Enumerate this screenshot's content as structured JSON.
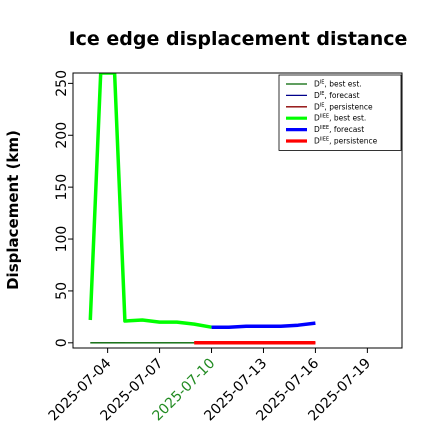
{
  "chart_data": {
    "type": "line",
    "title": "Ice edge displacement distance",
    "xlabel": "",
    "ylabel": "Displacement (km)",
    "xlim": [
      "2025-07-02",
      "2025-07-21"
    ],
    "ylim": [
      -5,
      260
    ],
    "yticks": [
      0,
      50,
      100,
      150,
      200,
      250
    ],
    "xticks": [
      {
        "date": "2025-07-04",
        "label": "2025-07-04",
        "color": "#000000"
      },
      {
        "date": "2025-07-07",
        "label": "2025-07-07",
        "color": "#000000"
      },
      {
        "date": "2025-07-10",
        "label": "2025-07-10",
        "color": "#228b22"
      },
      {
        "date": "2025-07-13",
        "label": "2025-07-13",
        "color": "#000000"
      },
      {
        "date": "2025-07-16",
        "label": "2025-07-16",
        "color": "#000000"
      },
      {
        "date": "2025-07-19",
        "label": "2025-07-19",
        "color": "#000000"
      }
    ],
    "legend_position": "top-right",
    "series": [
      {
        "name": "D^IE, best est.",
        "sup": "IE",
        "suffix": "best est.",
        "color": "#006400",
        "width": 1.3,
        "x": [
          "2025-07-03",
          "2025-07-10"
        ],
        "y": [
          0,
          0
        ]
      },
      {
        "name": "D^IE, forecast",
        "sup": "IE",
        "suffix": "forecast",
        "color": "#00008b",
        "width": 1.3,
        "x": [
          "2025-07-10",
          "2025-07-16"
        ],
        "y": [
          0,
          0
        ]
      },
      {
        "name": "D^IE, persistence",
        "sup": "IE",
        "suffix": "persistence",
        "color": "#8b0000",
        "width": 1.3,
        "x": [
          "2025-07-10",
          "2025-07-16"
        ],
        "y": [
          0,
          0
        ]
      },
      {
        "name": "D^IIEE, best est.",
        "sup": "IIEE",
        "suffix": "best est.",
        "color": "#00ff00",
        "width": 3.5,
        "x": [
          "2025-07-03",
          "2025-07-03.6",
          "2025-07-04.4",
          "2025-07-05",
          "2025-07-06",
          "2025-07-07",
          "2025-07-08",
          "2025-07-09",
          "2025-07-10"
        ],
        "y": [
          22,
          260,
          260,
          21,
          22,
          20,
          20,
          18,
          15
        ]
      },
      {
        "name": "D^IIEE, forecast",
        "sup": "IIEE",
        "suffix": "forecast",
        "color": "#0000ff",
        "width": 3.5,
        "x": [
          "2025-07-10",
          "2025-07-11",
          "2025-07-12",
          "2025-07-13",
          "2025-07-14",
          "2025-07-15",
          "2025-07-16"
        ],
        "y": [
          15,
          15,
          16,
          16,
          16,
          17,
          19
        ]
      },
      {
        "name": "D^IIEE, persistence",
        "sup": "IIEE",
        "suffix": "persistence",
        "color": "#ff0000",
        "width": 3.5,
        "x": [
          "2025-07-09",
          "2025-07-16"
        ],
        "y": [
          0,
          0
        ]
      }
    ],
    "extra_lines": [
      {
        "color": "#cccccc",
        "width": 1.3,
        "x": [
          "2025-07-03",
          "2025-07-05"
        ],
        "y": [
          0,
          0
        ]
      }
    ]
  }
}
